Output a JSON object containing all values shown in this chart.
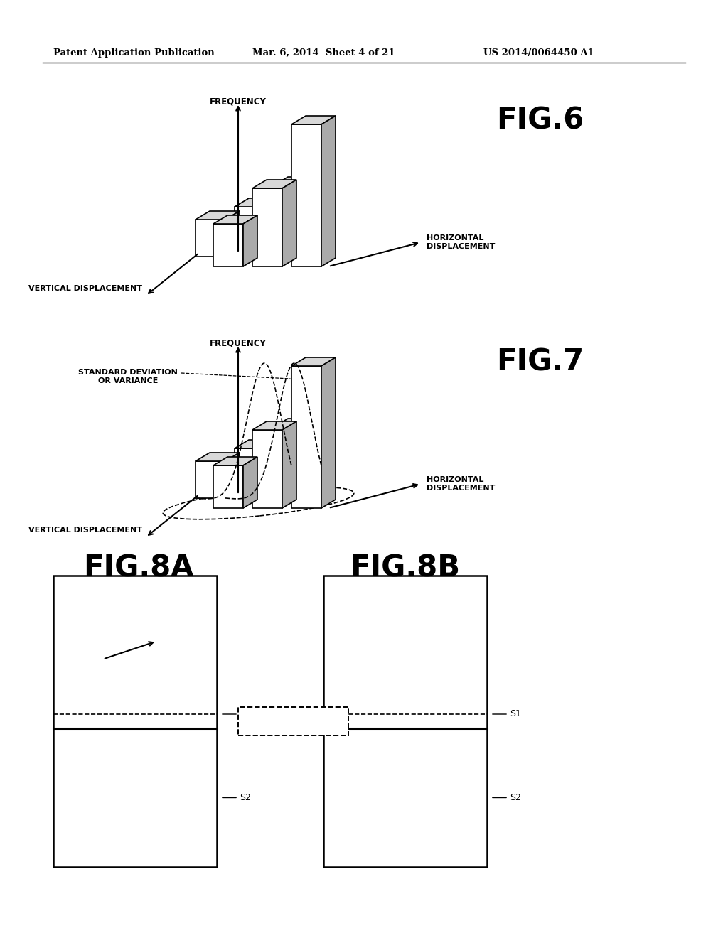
{
  "bg_color": "#ffffff",
  "header_text": "Patent Application Publication",
  "header_date": "Mar. 6, 2014  Sheet 4 of 21",
  "header_patent": "US 2014/0064450 A1",
  "fig6_label": "FIG.6",
  "fig7_label": "FIG.7",
  "fig8a_label": "FIG.8A",
  "fig8b_label": "FIG.8B"
}
